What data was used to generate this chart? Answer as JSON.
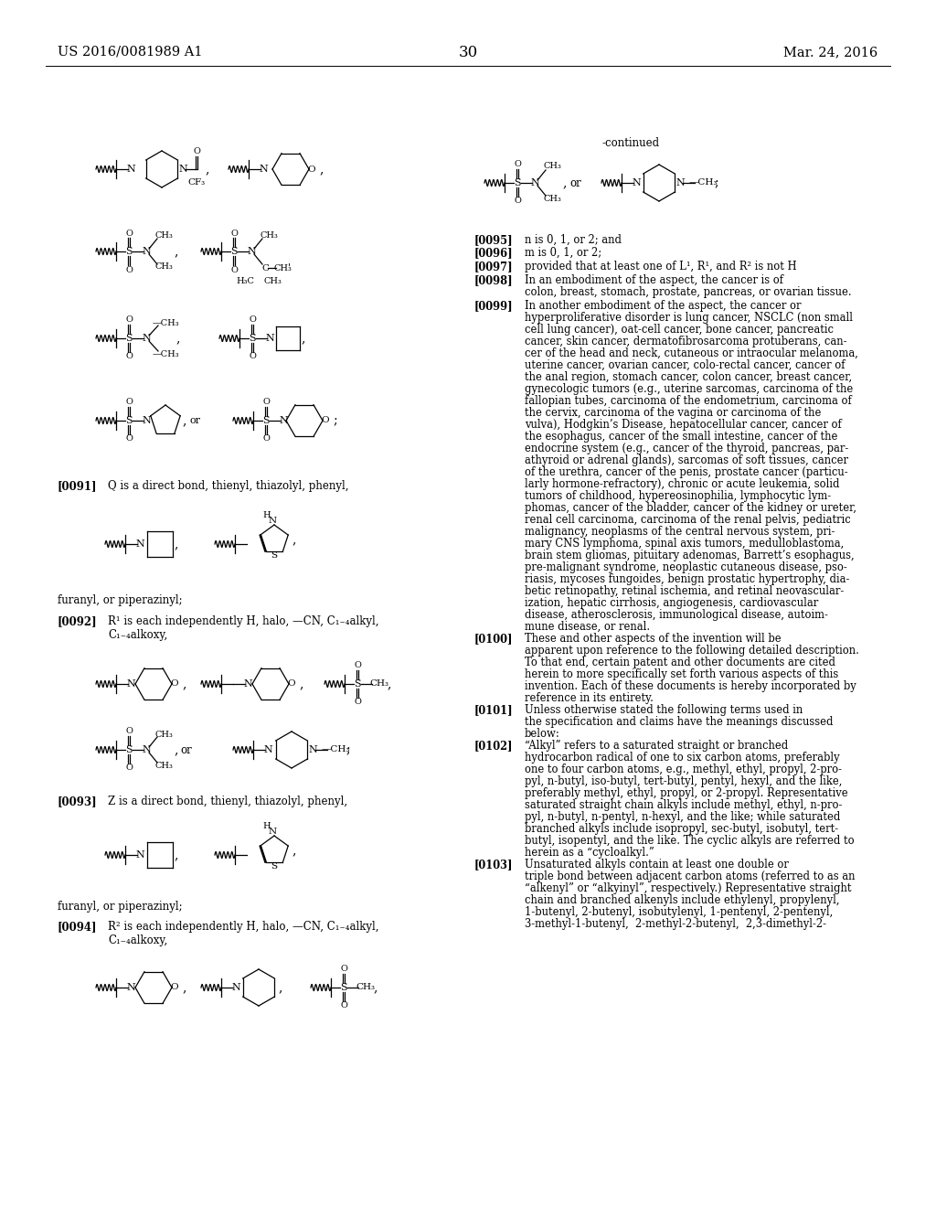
{
  "page_number": "30",
  "left_header": "US 2016/0081989 A1",
  "right_header": "Mar. 24, 2016",
  "background_color": "#ffffff",
  "text_color": "#000000",
  "continued_label": "-continued",
  "right_paragraphs": [
    {
      "ref": "[0095]",
      "text": "n is 0, 1, or 2; and"
    },
    {
      "ref": "[0096]",
      "text": "m is 0, 1, or 2;"
    },
    {
      "ref": "[0097]",
      "text": "provided that at least one of L¹, R¹, and R² is not H"
    },
    {
      "ref": "[0098]",
      "text": "In an embodiment of the aspect, the cancer is of\ncolon, breast, stomach, prostate, pancreas, or ovarian tissue."
    },
    {
      "ref": "[0099]",
      "text": "In another embodiment of the aspect, the cancer or\nhyperproliferative disorder is lung cancer, NSCLC (non small\ncell lung cancer), oat-cell cancer, bone cancer, pancreatic\ncancer, skin cancer, dermatofibrosarcoma protuberans, can-\ncer of the head and neck, cutaneous or intraocular melanoma,\nuterine cancer, ovarian cancer, colo-rectal cancer, cancer of\nthe anal region, stomach cancer, colon cancer, breast cancer,\ngynecologic tumors (e.g., uterine sarcomas, carcinoma of the\nfallopian tubes, carcinoma of the endometrium, carcinoma of\nthe cervix, carcinoma of the vagina or carcinoma of the\nvulva), Hodgkin’s Disease, hepatocellular cancer, cancer of\nthe esophagus, cancer of the small intestine, cancer of the\nendocrine system (e.g., cancer of the thyroid, pancreas, par-\nathyroid or adrenal glands), sarcomas of soft tissues, cancer\nof the urethra, cancer of the penis, prostate cancer (particu-\nlarly hormone-refractory), chronic or acute leukemia, solid\ntumors of childhood, hypereosinophilia, lymphocytic lym-\nphomas, cancer of the bladder, cancer of the kidney or ureter,\nrenal cell carcinoma, carcinoma of the renal pelvis, pediatric\nmalignancy, neoplasms of the central nervous system, pri-\nmary CNS lymphoma, spinal axis tumors, medulloblastoma,\nbrain stem gliomas, pituitary adenomas, Barrett’s esophagus,\npre-malignant syndrome, neoplastic cutaneous disease, pso-\nriasis, mycoses fungoides, benign prostatic hypertrophy, dia-\nbetic retinopathy, retinal ischemia, and retinal neovascular-\nization, hepatic cirrhosis, angiogenesis, cardiovascular\ndisease, atherosclerosis, immunological disease, autoim-\nmune disease, or renal."
    },
    {
      "ref": "[0100]",
      "text": "These and other aspects of the invention will be\napparent upon reference to the following detailed description.\nTo that end, certain patent and other documents are cited\nherein to more specifically set forth various aspects of this\ninvention. Each of these documents is hereby incorporated by\nreference in its entirety."
    },
    {
      "ref": "[0101]",
      "text": "Unless otherwise stated the following terms used in\nthe specification and claims have the meanings discussed\nbelow:"
    },
    {
      "ref": "[0102]",
      "text": "“Alkyl” refers to a saturated straight or branched\nhydrocarbon radical of one to six carbon atoms, preferably\none to four carbon atoms, e.g., methyl, ethyl, propyl, 2-pro-\npyl, n-butyl, iso-butyl, tert-butyl, pentyl, hexyl, and the like,\npreferably methyl, ethyl, propyl, or 2-propyl. Representative\nsaturated straight chain alkyls include methyl, ethyl, n-pro-\npyl, n-butyl, n-pentyl, n-hexyl, and the like; while saturated\nbranched alkyls include isopropyl, sec-butyl, isobutyl, tert-\nbutyl, isopentyl, and the like. The cyclic alkyls are referred to\nherein as a “cycloalkyl.”"
    },
    {
      "ref": "[0103]",
      "text": "Unsaturated alkyls contain at least one double or\ntriple bond between adjacent carbon atoms (referred to as an\n“alkenyl” or “alkyinyl”, respectively.) Representative straight\nchain and branched alkenyls include ethylenyl, propylenyl,\n1-butenyl, 2-butenyl, isobutylenyl, 1-pentenyl, 2-pentenyl,\n3-methyl-1-butenyl,  2-methyl-2-butenyl,  2,3-dimethyl-2-"
    }
  ]
}
